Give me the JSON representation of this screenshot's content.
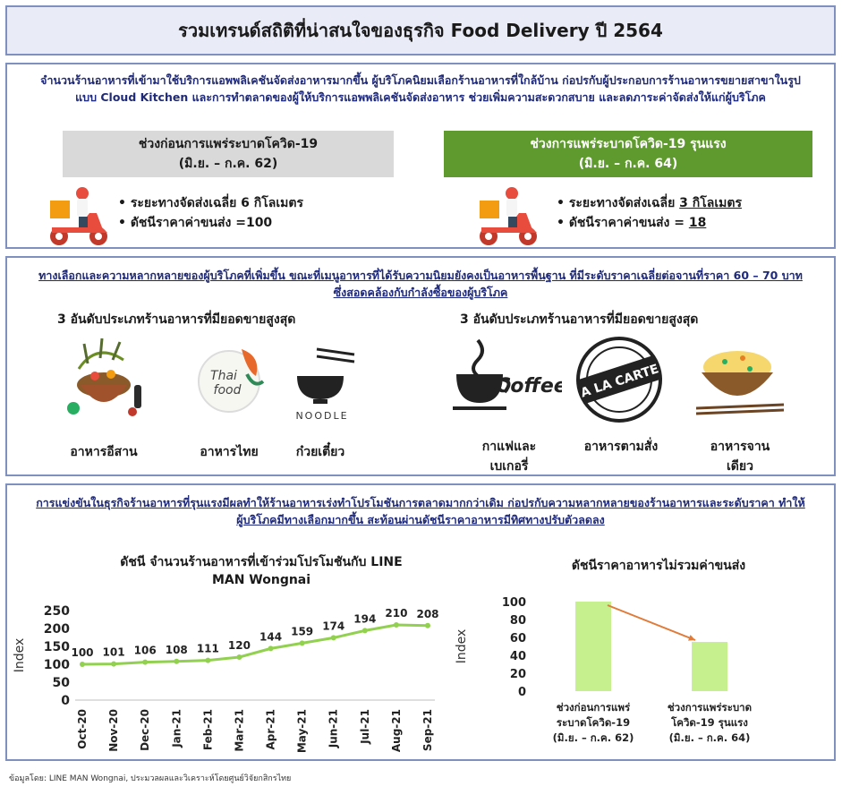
{
  "title": "รวมเทรนด์สถิติที่น่าสนใจของธุรกิจ Food Delivery ปี 2564",
  "section1": {
    "intro": "จำนวนร้านอาหารที่เข้ามาใช้บริการแอพพลิเคชันจัดส่งอาหารมากขึ้น ผู้บริโภคนิยมเลือกร้านอาหารที่ใกล้บ้าน ก่อปรกับผู้ประกอบการร้านอาหารขยายสาขาในรูปแบบ Cloud Kitchen และการทำตลาดของผู้ให้บริการแอพพลิเคชันจัดส่งอาหาร ช่วยเพิ่มความสะดวกสบาย และลดภาระค่าจัดส่งให้แก่ผู้บริโภค",
    "before": {
      "label_line1": "ช่วงก่อนการแพร่ระบาดโควิด-19",
      "label_line2": "(มิ.ย. – ก.ค. 62)",
      "distance_prefix": "ระยะทางจัดส่งเฉลี่ย ",
      "distance_value": "6 กิโลเมตร",
      "fee_prefix": "ดัชนีราคาค่าขนส่ง =",
      "fee_value": "100",
      "color": "#d9d9d9"
    },
    "after": {
      "label_line1": "ช่วงการแพร่ระบาดโควิด-19 รุนแรง",
      "label_line2": "(มิ.ย. – ก.ค. 64)",
      "distance_prefix": "ระยะทางจัดส่งเฉลี่ย ",
      "distance_value": "3 กิโลเมตร",
      "fee_prefix": "ดัชนีราคาค่าขนส่ง = ",
      "fee_value": "18",
      "color": "#5f9a2e"
    }
  },
  "section2": {
    "intro": "ทางเลือกและความหลากหลายของผู้บริโภคที่เพิ่มขึ้น ขณะที่เมนูอาหารที่ได้รับความนิยมยังคงเป็นอาหารพื้นฐาน ที่มีระดับราคาเฉลี่ยต่อจานที่ราคา 60 – 70 บาท ซึ่งสอดคล้องกับกำลังซื้อของผู้บริโภค",
    "before_heading": "3 อันดับประเภทร้านอาหารที่มียอดขายสูงสุด",
    "after_heading": "3 อันดับประเภทร้านอาหารที่มียอดขายสูงสุด",
    "before_items": [
      {
        "label": "อาหารอีสาน",
        "icon": "isan-food-icon"
      },
      {
        "label": "อาหารไทย",
        "icon": "thai-food-icon",
        "badge_line1": "Thai",
        "badge_line2": "food"
      },
      {
        "label": "ก๋วยเตี๋ยว",
        "icon": "noodle-icon",
        "caption": "NOODLE"
      }
    ],
    "after_items": [
      {
        "label_line1": "กาแฟและ",
        "label_line2": "เบเกอรี่",
        "icon": "coffee-icon",
        "caption": "Coffee"
      },
      {
        "label": "อาหารตามสั่ง",
        "icon": "a-la-carte-icon",
        "caption": "A LA CARTE",
        "ring_text": "A LA CARTE"
      },
      {
        "label_line1": "อาหารจาน",
        "label_line2": "เดียว",
        "icon": "fried-rice-icon"
      }
    ]
  },
  "section3": {
    "intro": "การแข่งขันในธุรกิจร้านอาหารที่รุนแรงมีผลทำให้ร้านอาหารเร่งทำโปรโมชันการตลาดมากกว่าเดิม ก่อปรกับความหลากหลายของร้านอาหารและระดับราคา ทำให้ผู้บริโภคมีทางเลือกมากขึ้น สะท้อนผ่านดัชนีราคาอาหารมีทิศทางปรับตัวลดลง"
  },
  "chart_data": [
    {
      "type": "line",
      "title": "ดัชนี จำนวนร้านอาหารที่เข้าร่วมโปรโมชันกับ LINE MAN Wongnai",
      "title_line1": "ดัชนี จำนวนร้านอาหารที่เข้าร่วมโปรโมชันกับ LINE",
      "title_line2": "MAN Wongnai",
      "ylabel": "Index",
      "ylim": [
        0,
        250
      ],
      "yticks": [
        0,
        50,
        100,
        150,
        200,
        250
      ],
      "categories": [
        "Oct-20",
        "Nov-20",
        "Dec-20",
        "Jan-21",
        "Feb-21",
        "Mar-21",
        "Apr-21",
        "May-21",
        "Jun-21",
        "Jul-21",
        "Aug-21",
        "Sep-21"
      ],
      "values": [
        100,
        101,
        106,
        108,
        111,
        120,
        144,
        159,
        174,
        194,
        210,
        208
      ],
      "grid": false,
      "color": "#92d050"
    },
    {
      "type": "bar",
      "title": "ดัชนีราคาอาหารไม่รวมค่าขนส่ง",
      "ylabel": "Index",
      "ylim": [
        0,
        100
      ],
      "yticks": [
        0,
        20,
        40,
        60,
        80,
        100
      ],
      "categories": [
        "ช่วงก่อนการแพร่ระบาดโควิด-19 (มิ.ย. – ก.ค. 62)",
        "ช่วงการแพร่ระบาดโควิด-19 รุนแรง (มิ.ย. – ก.ค. 64)"
      ],
      "category_lines": [
        [
          "ช่วงก่อนการแพร่",
          "ระบาดโควิด-19",
          "(มิ.ย. – ก.ค. 62)"
        ],
        [
          "ช่วงการแพร่ระบาด",
          "โควิด-19 รุนแรง",
          "(มิ.ย. – ก.ค. 64)"
        ]
      ],
      "values": [
        100,
        55
      ],
      "grid": false,
      "color": "#c6ef8e",
      "arrow_color": "#e07b39"
    }
  ],
  "source": "ข้อมูลโดย: LINE MAN Wongnai, ประมวลผลและวิเคราะห์โดยศูนย์วิจัยกสิกรไทย"
}
